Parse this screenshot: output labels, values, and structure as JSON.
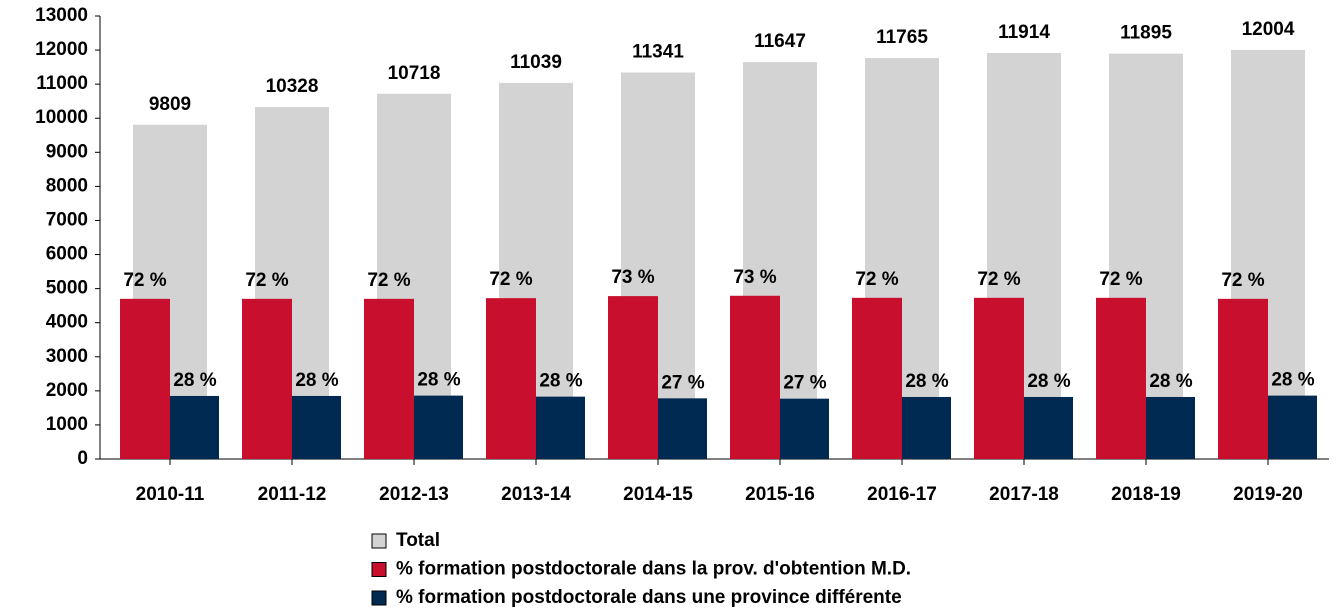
{
  "chart_data": {
    "type": "bar",
    "categories": [
      "2010-11",
      "2011-12",
      "2012-13",
      "2013-14",
      "2014-15",
      "2015-16",
      "2016-17",
      "2017-18",
      "2018-19",
      "2019-20"
    ],
    "series": [
      {
        "name": "Total",
        "color": "#d3d3d3",
        "values": [
          9809,
          10328,
          10718,
          11039,
          11341,
          11647,
          11765,
          11914,
          11895,
          12004
        ]
      },
      {
        "name": "% formation postdoctorale dans la prov. d'obtention M.D.",
        "color": "#c8102e",
        "values": [
          4700,
          4700,
          4700,
          4720,
          4780,
          4790,
          4730,
          4730,
          4730,
          4700
        ],
        "percent_labels": [
          "72 %",
          "72 %",
          "72 %",
          "72 %",
          "73 %",
          "73 %",
          "72 %",
          "72 %",
          "72 %",
          "72 %"
        ]
      },
      {
        "name": "% formation postdoctorale dans une province différente",
        "color": "#012a52",
        "values": [
          1850,
          1850,
          1860,
          1830,
          1780,
          1770,
          1820,
          1820,
          1820,
          1860
        ],
        "percent_labels": [
          "28 %",
          "28 %",
          "28 %",
          "28 %",
          "27 %",
          "27 %",
          "28 %",
          "28 %",
          "28 %",
          "28 %"
        ]
      }
    ],
    "ylim": [
      0,
      13000
    ],
    "yticks": [
      0,
      1000,
      2000,
      3000,
      4000,
      5000,
      6000,
      7000,
      8000,
      9000,
      10000,
      11000,
      12000,
      13000
    ]
  }
}
